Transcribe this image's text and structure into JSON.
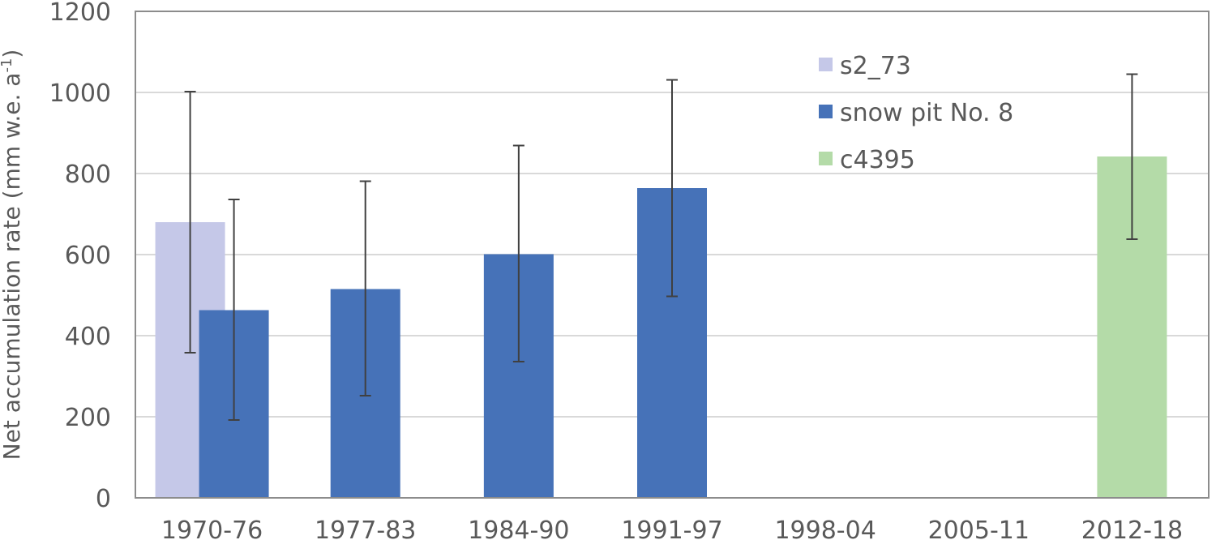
{
  "chart_data": {
    "type": "bar",
    "categories": [
      "1970-76",
      "1977-83",
      "1984-90",
      "1991-97",
      "1998-04",
      "2005-11",
      "2012-18"
    ],
    "series": [
      {
        "name": "s2_73",
        "color": "#c5c8e8",
        "values": [
          680,
          null,
          null,
          null,
          null,
          null,
          null
        ],
        "error_low": [
          358,
          null,
          null,
          null,
          null,
          null,
          null
        ],
        "error_high": [
          1002,
          null,
          null,
          null,
          null,
          null,
          null
        ]
      },
      {
        "name": "snow pit No. 8",
        "color": "#4672b8",
        "values": [
          463,
          515,
          601,
          764,
          null,
          null,
          null
        ],
        "error_low": [
          192,
          252,
          336,
          497,
          null,
          null,
          null
        ],
        "error_high": [
          736,
          781,
          869,
          1031,
          null,
          null,
          null
        ]
      },
      {
        "name": "c4395",
        "color": "#b4dba8",
        "values": [
          null,
          null,
          null,
          null,
          null,
          null,
          842
        ],
        "error_low": [
          null,
          null,
          null,
          null,
          null,
          null,
          638
        ],
        "error_high": [
          null,
          null,
          null,
          null,
          null,
          null,
          1045
        ]
      }
    ],
    "ylabel": "Net accumulation rate (mm w.e. a",
    "ylabel_superscript": "-1",
    "ylabel_close": ")",
    "ylim": [
      0,
      1200
    ],
    "yticks": [
      "0",
      "200",
      "400",
      "600",
      "800",
      "1000",
      "1200"
    ],
    "grid": true,
    "legend_position": "top-right"
  }
}
